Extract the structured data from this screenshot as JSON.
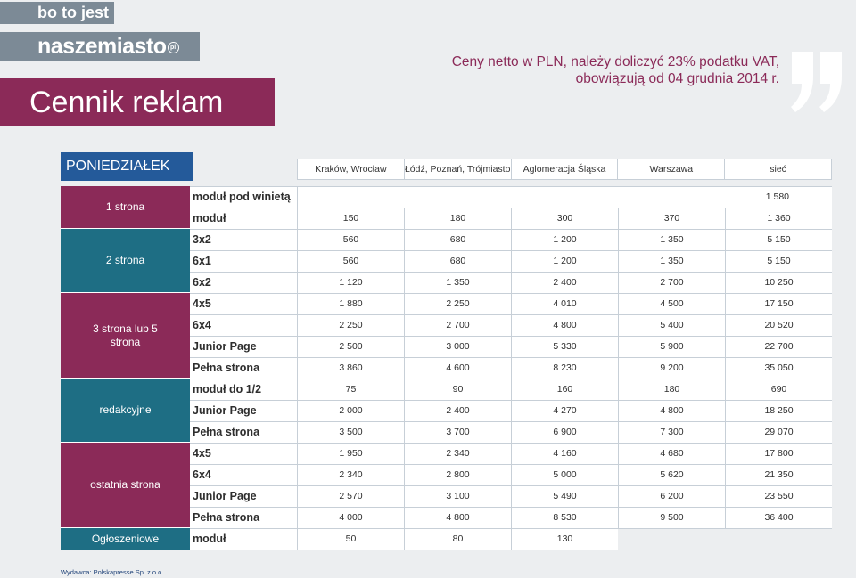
{
  "brand": {
    "tagline": "bo to jest",
    "logo": "naszemiasto",
    "logo_mark": "pl"
  },
  "title": "Cennik reklam",
  "note": {
    "line1": "Ceny netto w PLN, należy doliczyć 23% podatku VAT,",
    "line2": "obowiązują od 04 grudnia 2014 r."
  },
  "day": "PONIEDZIAŁEK",
  "columns": [
    "Kraków, Wrocław",
    "Łódź, Poznań, Trójmiasto",
    "Aglomeracja Śląska",
    "Warszawa",
    "sieć"
  ],
  "sections": [
    {
      "label": "1 strona",
      "color": "#8b2a58",
      "rows": [
        {
          "label": "moduł pod winietą",
          "merged": "1 580"
        },
        {
          "label": "moduł",
          "values": [
            "150",
            "180",
            "300",
            "370",
            "1 360"
          ]
        }
      ]
    },
    {
      "label": "2 strona",
      "color": "#1e6e84",
      "rows": [
        {
          "label": "3x2",
          "values": [
            "560",
            "680",
            "1 200",
            "1 350",
            "5 150"
          ]
        },
        {
          "label": "6x1",
          "values": [
            "560",
            "680",
            "1 200",
            "1 350",
            "5 150"
          ]
        },
        {
          "label": "6x2",
          "values": [
            "1 120",
            "1 350",
            "2 400",
            "2 700",
            "10 250"
          ]
        }
      ]
    },
    {
      "label": "3 strona lub 5 strona",
      "color": "#8b2a58",
      "rows": [
        {
          "label": "4x5",
          "values": [
            "1 880",
            "2 250",
            "4 010",
            "4 500",
            "17 150"
          ]
        },
        {
          "label": "6x4",
          "values": [
            "2 250",
            "2 700",
            "4 800",
            "5 400",
            "20 520"
          ]
        },
        {
          "label": "Junior Page",
          "values": [
            "2 500",
            "3 000",
            "5 330",
            "5 900",
            "22 700"
          ]
        },
        {
          "label": "Pełna strona",
          "values": [
            "3 860",
            "4 600",
            "8 230",
            "9 200",
            "35 050"
          ]
        }
      ]
    },
    {
      "label": "redakcyjne",
      "color": "#1e6e84",
      "rows": [
        {
          "label": "moduł do 1/2",
          "values": [
            "75",
            "90",
            "160",
            "180",
            "690"
          ]
        },
        {
          "label": "Junior Page",
          "values": [
            "2 000",
            "2 400",
            "4 270",
            "4 800",
            "18 250"
          ]
        },
        {
          "label": "Pełna strona",
          "values": [
            "3 500",
            "3 700",
            "6 900",
            "7 300",
            "29 070"
          ]
        }
      ]
    },
    {
      "label": "ostatnia strona",
      "color": "#8b2a58",
      "rows": [
        {
          "label": "4x5",
          "values": [
            "1 950",
            "2 340",
            "4 160",
            "4 680",
            "17 800"
          ]
        },
        {
          "label": "6x4",
          "values": [
            "2 340",
            "2 800",
            "5 000",
            "5 620",
            "21 350"
          ]
        },
        {
          "label": "Junior Page",
          "values": [
            "2 570",
            "3 100",
            "5 490",
            "6 200",
            "23 550"
          ]
        },
        {
          "label": "Pełna strona",
          "values": [
            "4 000",
            "4 800",
            "8 530",
            "9 500",
            "36 400"
          ]
        }
      ]
    },
    {
      "label": "Ogłoszeniowe",
      "color": "#1e6e84",
      "rows": [
        {
          "label": "moduł",
          "values": [
            "50",
            "80",
            "130",
            "",
            ""
          ]
        }
      ]
    }
  ],
  "publisher": "Wydawca: Polskapresse Sp. z o.o."
}
